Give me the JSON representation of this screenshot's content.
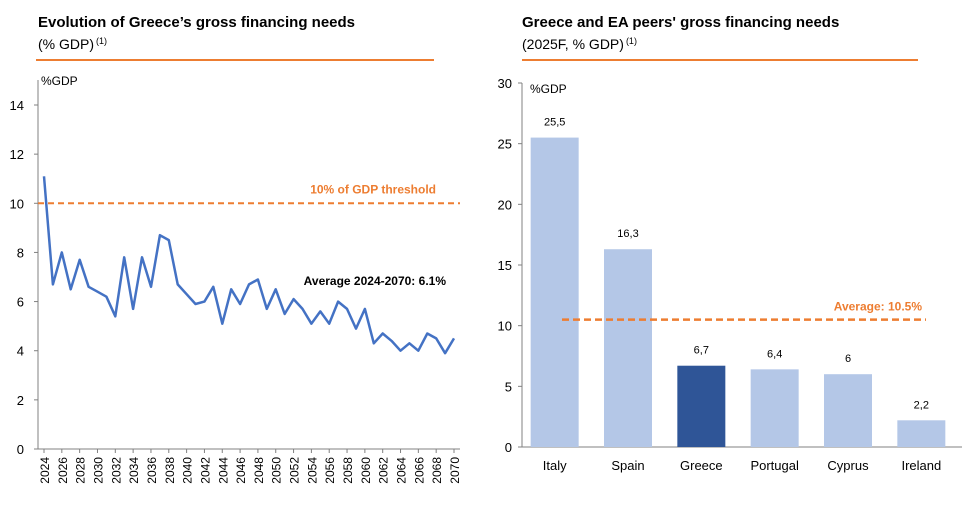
{
  "colors": {
    "accent": "#ED7D31",
    "line": "#4472C4",
    "bar": "#B4C7E7",
    "bar_highlight": "#2F5597"
  },
  "left": {
    "title": "Evolution of Greece’s gross financing needs",
    "subtitle": "(% GDP)",
    "footnote_mark": "(1)"
  },
  "right": {
    "title": "Greece and EA peers' gross financing needs",
    "subtitle": "(2025F, % GDP)",
    "footnote_mark": "(1)"
  },
  "chart_data": [
    {
      "type": "line",
      "title": "Evolution of Greece’s gross financing needs",
      "ylabel": "%GDP",
      "ylim": [
        0,
        14
      ],
      "yticks": [
        0,
        2,
        4,
        6,
        8,
        10,
        12,
        14
      ],
      "x": [
        2024,
        2025,
        2026,
        2027,
        2028,
        2029,
        2030,
        2031,
        2032,
        2033,
        2034,
        2035,
        2036,
        2037,
        2038,
        2039,
        2040,
        2041,
        2042,
        2043,
        2044,
        2045,
        2046,
        2047,
        2048,
        2049,
        2050,
        2051,
        2052,
        2053,
        2054,
        2055,
        2056,
        2057,
        2058,
        2059,
        2060,
        2061,
        2062,
        2063,
        2064,
        2065,
        2066,
        2067,
        2068,
        2069,
        2070
      ],
      "xtick_labels": [
        "2024",
        "2026",
        "2028",
        "2030",
        "2032",
        "2034",
        "2036",
        "2038",
        "2040",
        "2042",
        "2044",
        "2046",
        "2048",
        "2050",
        "2052",
        "2054",
        "2056",
        "2058",
        "2060",
        "2062",
        "2064",
        "2066",
        "2068",
        "2070"
      ],
      "series": [
        {
          "values": [
            11.1,
            6.7,
            8.0,
            6.5,
            7.7,
            6.6,
            6.4,
            6.2,
            5.4,
            7.8,
            5.7,
            7.8,
            6.6,
            8.7,
            8.5,
            6.7,
            6.3,
            5.9,
            6.0,
            6.6,
            5.1,
            6.5,
            5.9,
            6.7,
            6.9,
            5.7,
            6.5,
            5.5,
            6.1,
            5.7,
            5.1,
            5.6,
            5.1,
            6.0,
            5.7,
            4.9,
            5.7,
            4.3,
            4.7,
            4.4,
            4.0,
            4.3,
            4.0,
            4.7,
            4.5,
            3.9,
            4.5
          ]
        }
      ],
      "reference_line": {
        "value": 10,
        "label": "10% of GDP threshold"
      },
      "annotation": "Average 2024-2070: 6.1%",
      "grid": false
    },
    {
      "type": "bar",
      "title": "Greece and EA peers' gross financing needs",
      "ylabel": "%GDP",
      "ylim": [
        0,
        30
      ],
      "yticks": [
        0,
        5,
        10,
        15,
        20,
        25,
        30
      ],
      "categories": [
        "Italy",
        "Spain",
        "Greece",
        "Portugal",
        "Cyprus",
        "Ireland"
      ],
      "values": [
        25.5,
        16.3,
        6.7,
        6.4,
        6.0,
        2.2
      ],
      "data_labels": [
        "25,5",
        "16,3",
        "6,7",
        "6,4",
        "6",
        "2,2"
      ],
      "highlight": "Greece",
      "reference_line": {
        "value": 10.5,
        "label": "Average: 10.5%"
      },
      "grid": false
    }
  ]
}
